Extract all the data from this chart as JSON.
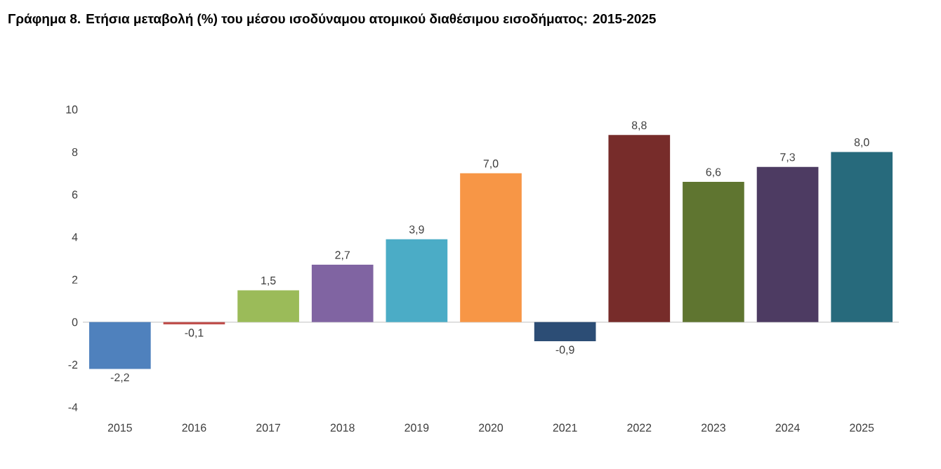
{
  "chart_data": {
    "type": "bar",
    "title": "Γράφημα 8. Ετήσια μεταβολή (%) του μέσου ισοδύναμου ατομικού διαθέσιμου εισοδήματος: 2015-2025",
    "categories": [
      "2015",
      "2016",
      "2017",
      "2018",
      "2019",
      "2020",
      "2021",
      "2022",
      "2023",
      "2024",
      "2025"
    ],
    "values": [
      -2.2,
      -0.1,
      1.5,
      2.7,
      3.9,
      7.0,
      -0.9,
      8.8,
      6.6,
      7.3,
      8.0
    ],
    "value_labels": [
      "-2,2",
      "-0,1",
      "1,5",
      "2,7",
      "3,9",
      "7,0",
      "-0,9",
      "8,8",
      "6,6",
      "7,3",
      "8,0"
    ],
    "colors": [
      "#4f81bd",
      "#c0504d",
      "#9bbb59",
      "#8064a2",
      "#4bacc6",
      "#f79646",
      "#2c4d75",
      "#772c2a",
      "#5f7530",
      "#4d3b62",
      "#276a7c"
    ],
    "ylim": [
      -4,
      10
    ],
    "yticks": [
      -4,
      -2,
      0,
      2,
      4,
      6,
      8,
      10
    ]
  }
}
